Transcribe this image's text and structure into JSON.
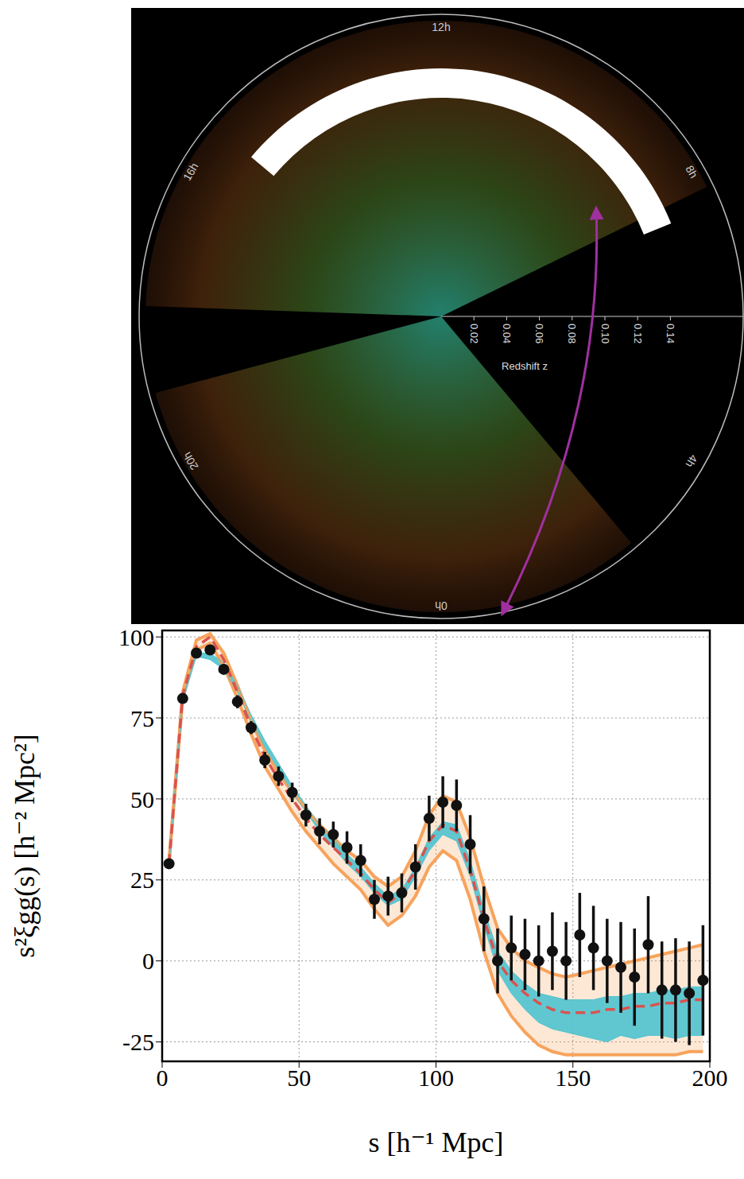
{
  "map": {
    "hour_labels": [
      {
        "value": 12,
        "label": "12h"
      },
      {
        "value": 16,
        "label": "16h"
      },
      {
        "value": 20,
        "label": "20h"
      },
      {
        "value": 0,
        "label": "0h"
      },
      {
        "value": 4,
        "label": "4h"
      },
      {
        "value": 8,
        "label": "8h"
      }
    ],
    "redshift_ticks": [
      0.02,
      0.04,
      0.06,
      0.08,
      {
        "value": 0.1,
        "label": "0.10"
      },
      0.12,
      0.14
    ],
    "redshift_label": "Redshift z"
  },
  "chart_data": {
    "type": "scatter",
    "xlabel": "s [h⁻¹ Mpc]",
    "ylabel": "s²ξgg(s) [h⁻² Mpc²]",
    "xlim": [
      0,
      200
    ],
    "xticks": [
      0,
      50,
      100,
      150,
      200
    ],
    "ylim": [
      -31,
      102
    ],
    "yticks": [
      -25,
      0,
      25,
      50,
      75,
      100
    ],
    "grid": true,
    "x": [
      2.5,
      7.5,
      12.5,
      17.5,
      22.5,
      27.5,
      32.5,
      37.5,
      42.5,
      47.5,
      52.5,
      57.5,
      62.5,
      67.5,
      72.5,
      77.5,
      82.5,
      87.5,
      92.5,
      97.5,
      102.5,
      107.5,
      112.5,
      117.5,
      122.5,
      127.5,
      132.5,
      137.5,
      142.5,
      147.5,
      152.5,
      157.5,
      162.5,
      167.5,
      172.5,
      177.5,
      182.5,
      187.5,
      192.5,
      197.5
    ],
    "series": [
      {
        "type": "band",
        "color": "#f7a35c",
        "lower": [
          30,
          81,
          96,
          98,
          91,
          81,
          70,
          60,
          53,
          46,
          40,
          35,
          30,
          26,
          22,
          16,
          11,
          14,
          20,
          29,
          34,
          31,
          19,
          3,
          -10,
          -17,
          -22,
          -26,
          -28,
          -29,
          -29,
          -29,
          -29,
          -29,
          -29,
          -29,
          -29,
          -29,
          -28,
          -28
        ],
        "upper": [
          31,
          83,
          99,
          101,
          95,
          85,
          74,
          65,
          58,
          52,
          47,
          42,
          38,
          34,
          31,
          26,
          23,
          26,
          34,
          45,
          51,
          49,
          38,
          23,
          10,
          4,
          0,
          -2,
          -4,
          -5,
          -4,
          -3,
          -2,
          -1,
          0,
          1,
          2,
          3,
          4,
          5
        ]
      },
      {
        "type": "band",
        "color": "#4fc3cf",
        "lower": [
          30,
          80,
          94,
          93,
          90,
          83,
          74,
          66,
          59,
          52,
          46,
          40,
          35,
          30,
          26,
          21,
          17,
          19,
          26,
          34,
          39,
          37,
          26,
          11,
          -3,
          -10,
          -15,
          -19,
          -21,
          -22,
          -23,
          -24,
          -25,
          -23,
          -24,
          -23,
          -23,
          -24,
          -23,
          -23
        ],
        "upper": [
          30,
          81,
          95,
          95,
          92,
          85,
          76,
          68,
          61,
          54,
          48,
          42,
          38,
          33,
          29,
          24,
          20,
          22,
          29,
          38,
          43,
          42,
          31,
          16,
          3,
          -3,
          -7,
          -10,
          -11,
          -12,
          -12,
          -12,
          -11,
          -11,
          -10,
          -10,
          -9,
          -9,
          -8,
          -8
        ]
      },
      {
        "type": "line",
        "color": "#d9534f",
        "line_style": "dashed",
        "values": [
          30,
          82,
          97,
          100,
          93,
          83,
          72,
          63,
          56,
          50,
          44,
          39,
          35,
          31,
          27,
          22,
          18,
          21,
          28,
          37,
          42,
          40,
          28,
          13,
          0,
          -6,
          -10,
          -13,
          -15,
          -16,
          -16,
          -16,
          -15,
          -15,
          -14,
          -14,
          -13,
          -13,
          -12,
          -12
        ]
      },
      {
        "type": "scatter",
        "color": "#111111",
        "marker": "circle",
        "values": [
          30,
          81,
          95,
          96,
          90,
          80,
          72,
          62,
          57,
          52,
          45,
          40,
          39,
          35,
          31,
          19,
          20,
          21,
          29,
          44,
          49,
          48,
          36,
          13,
          0,
          4,
          2,
          0,
          3,
          0,
          8,
          4,
          0,
          -2,
          -5,
          5,
          -9,
          -9,
          -10,
          -6
        ],
        "errors": [
          1,
          1,
          1,
          1,
          1.5,
          2,
          2,
          2.5,
          3,
          3,
          3.5,
          4,
          4,
          5,
          5,
          6,
          6,
          6,
          7,
          7,
          8,
          8,
          9,
          10,
          10,
          10,
          11,
          11,
          12,
          12,
          13,
          13,
          13,
          14,
          15,
          15,
          15,
          16,
          16,
          17
        ]
      }
    ]
  }
}
